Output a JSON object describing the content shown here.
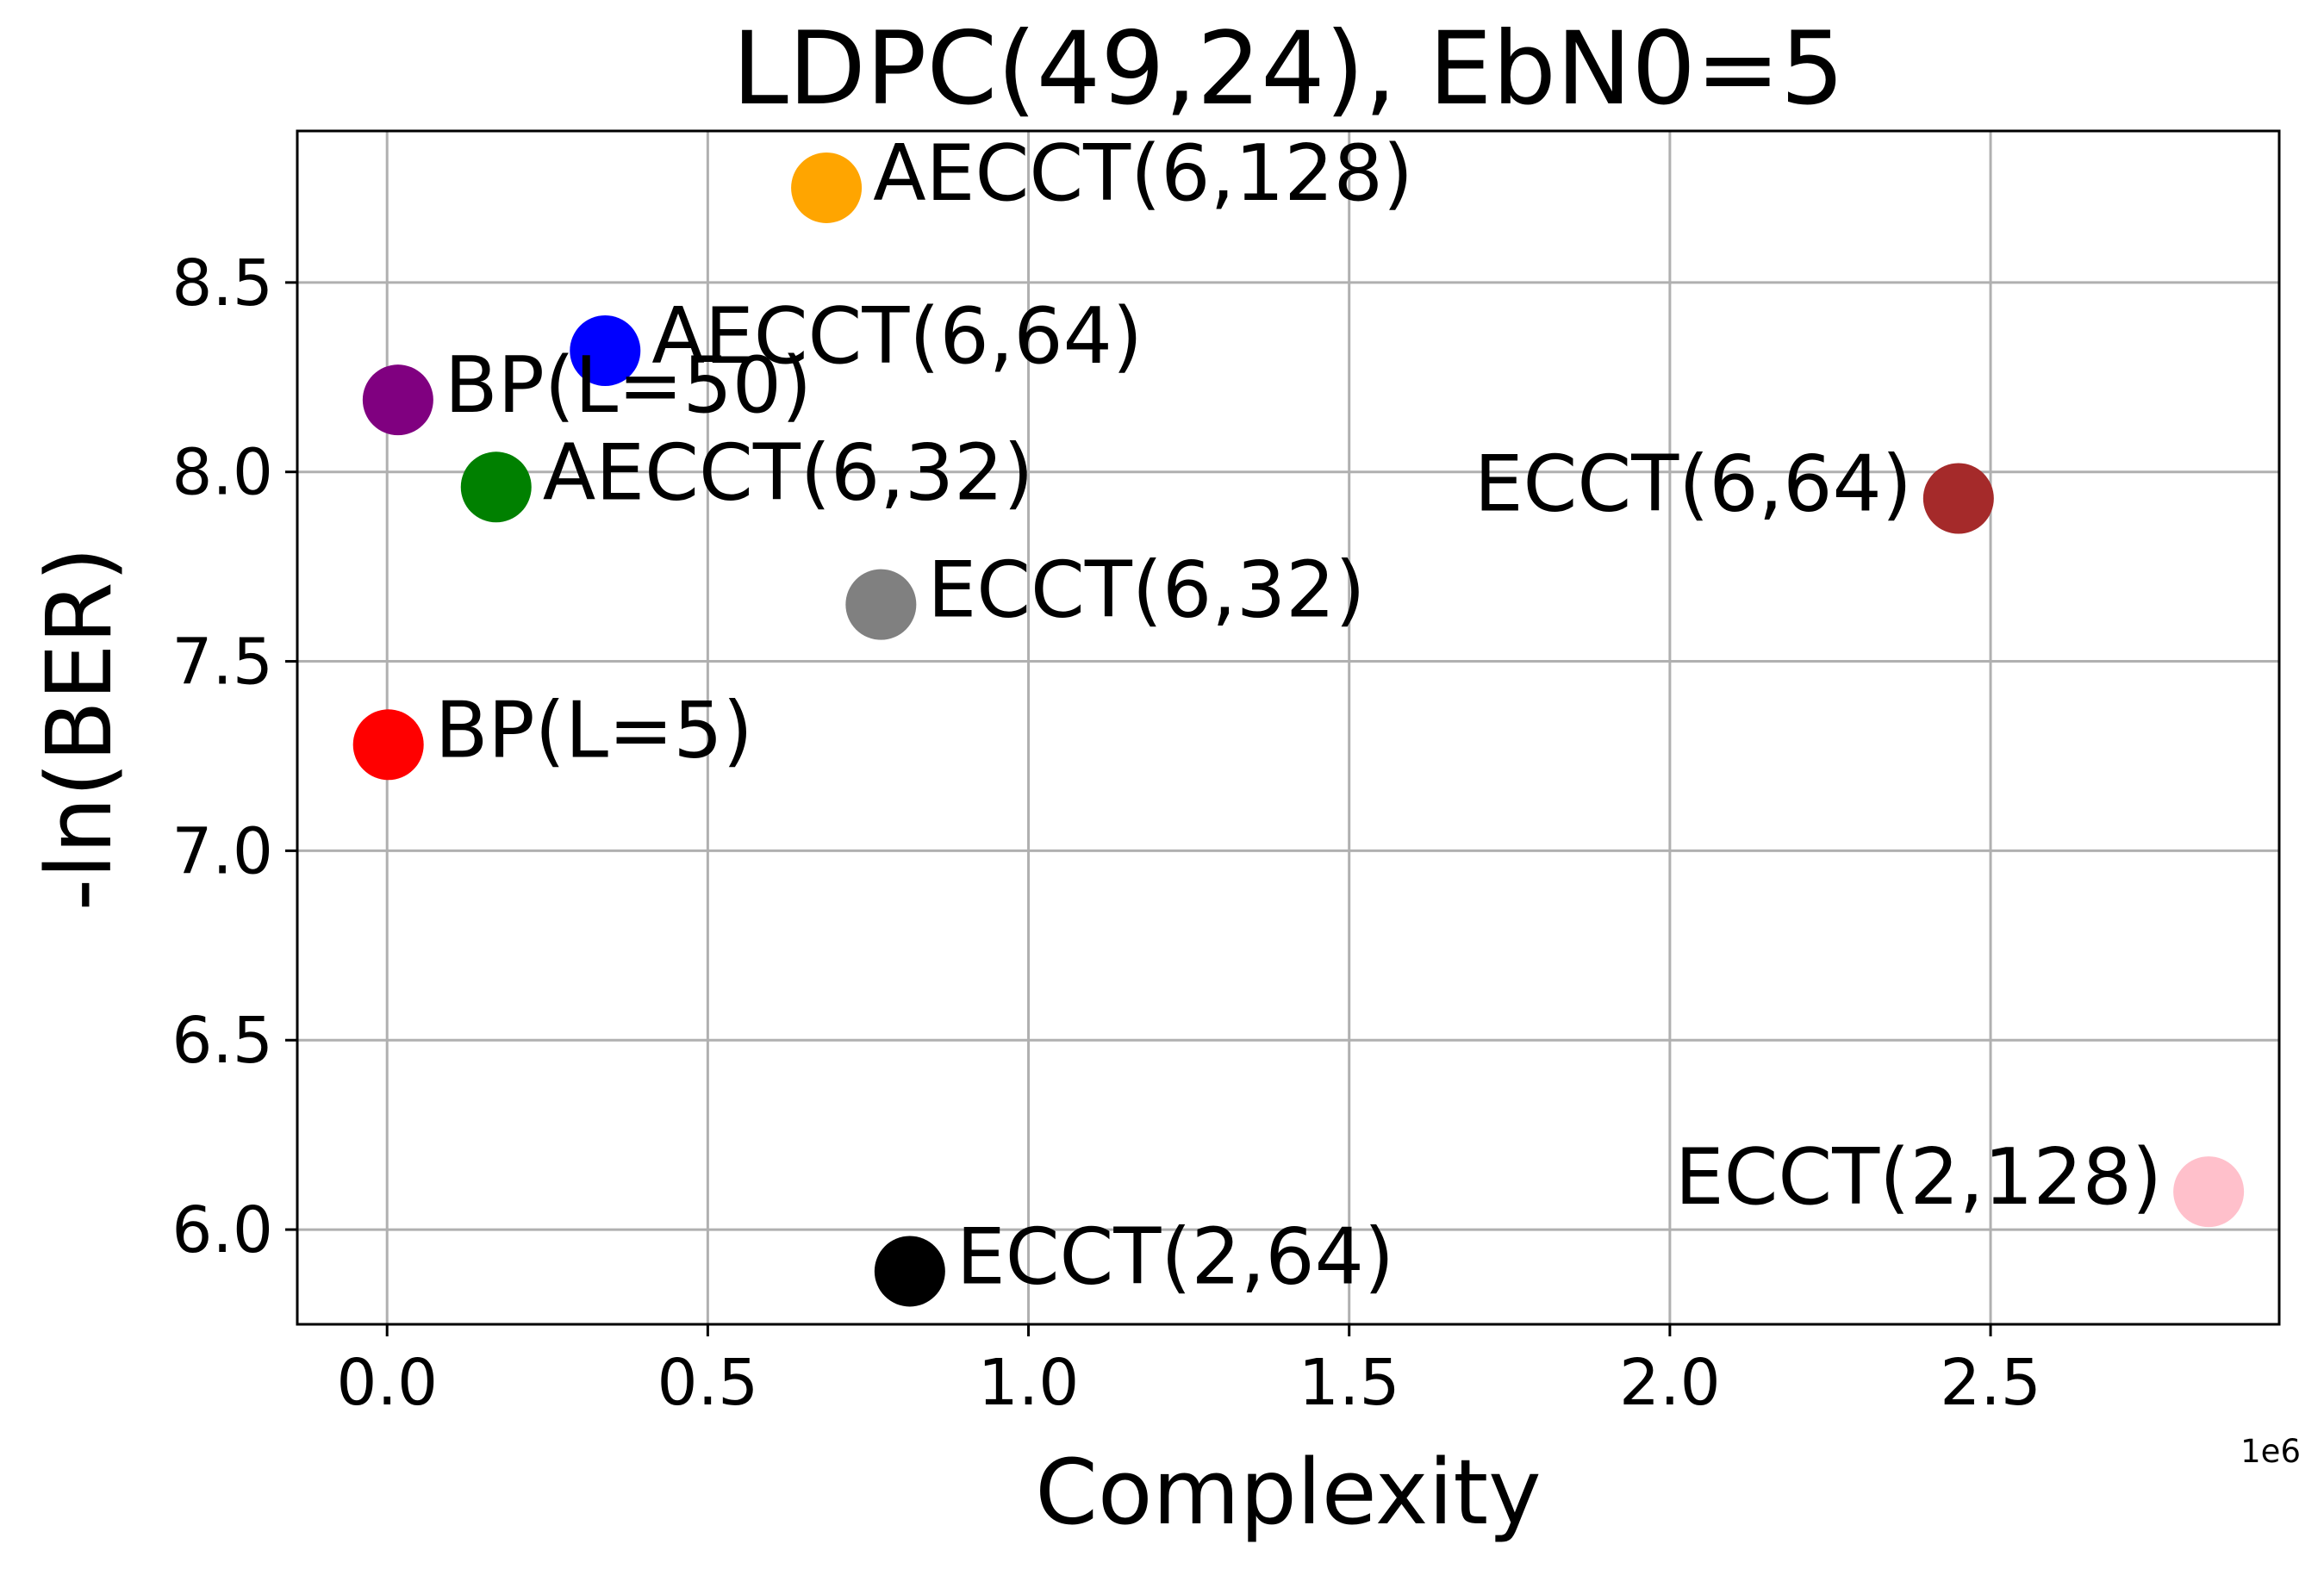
{
  "chart_data": {
    "type": "scatter",
    "title": "LDPC(49,24), EbN0=5",
    "xlabel": "Complexity",
    "ylabel": "-ln(BER)",
    "x_offset_label": "1e6",
    "xlim": [
      -0.14,
      2.95
    ],
    "ylim": [
      5.75,
      8.9
    ],
    "x_ticks": [
      0.0,
      0.5,
      1.0,
      1.5,
      2.0,
      2.5
    ],
    "x_tick_labels": [
      "0.0",
      "0.5",
      "1.0",
      "1.5",
      "2.0",
      "2.5"
    ],
    "y_ticks": [
      6.0,
      6.5,
      7.0,
      7.5,
      8.0,
      8.5
    ],
    "y_tick_labels": [
      "6.0",
      "6.5",
      "7.0",
      "7.5",
      "8.0",
      "8.5"
    ],
    "grid": true,
    "points": [
      {
        "label": "AECCT(6,128)",
        "x": 0.685,
        "y": 8.75,
        "color": "#ffa500",
        "label_side": "right"
      },
      {
        "label": "AECCT(6,64)",
        "x": 0.34,
        "y": 8.32,
        "color": "#0000ff",
        "label_side": "right"
      },
      {
        "label": "BP(L=50)",
        "x": 0.017,
        "y": 8.19,
        "color": "#800080",
        "label_side": "right"
      },
      {
        "label": "AECCT(6,32)",
        "x": 0.17,
        "y": 7.96,
        "color": "#008000",
        "label_side": "right"
      },
      {
        "label": "ECCT(6,64)",
        "x": 2.45,
        "y": 7.93,
        "color": "#a52a2a",
        "label_side": "left"
      },
      {
        "label": "ECCT(6,32)",
        "x": 0.77,
        "y": 7.65,
        "color": "#808080",
        "label_side": "right"
      },
      {
        "label": "BP(L=5)",
        "x": 0.002,
        "y": 7.28,
        "color": "#ff0000",
        "label_side": "right"
      },
      {
        "label": "ECCT(2,128)",
        "x": 2.84,
        "y": 6.1,
        "color": "#ffc0cb",
        "label_side": "left"
      },
      {
        "label": "ECCT(2,64)",
        "x": 0.815,
        "y": 5.89,
        "color": "#000000",
        "label_side": "right"
      }
    ]
  }
}
